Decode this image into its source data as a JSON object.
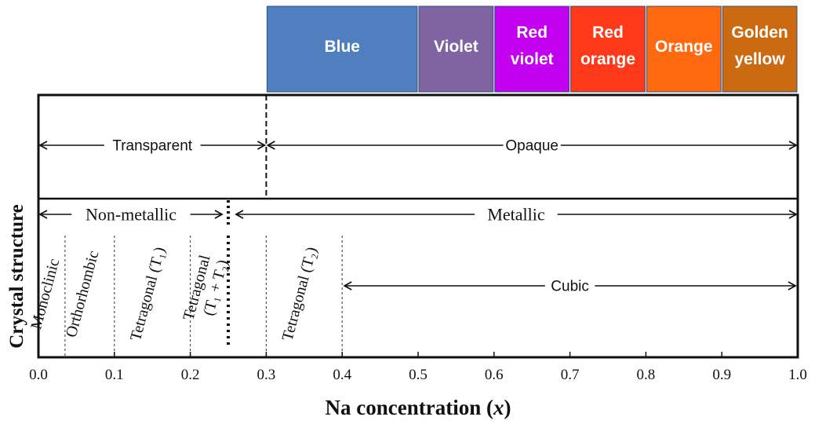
{
  "color_bands": [
    {
      "lines": [
        "Blue"
      ],
      "from": 0.3,
      "to": 0.5,
      "color": "#4f7fbf"
    },
    {
      "lines": [
        "Violet"
      ],
      "from": 0.5,
      "to": 0.6,
      "color": "#8064a2"
    },
    {
      "lines": [
        "Red",
        "violet"
      ],
      "from": 0.6,
      "to": 0.7,
      "color": "#c400f0"
    },
    {
      "lines": [
        "Red",
        "orange"
      ],
      "from": 0.7,
      "to": 0.8,
      "color": "#ff3a1a"
    },
    {
      "lines": [
        "Orange"
      ],
      "from": 0.8,
      "to": 0.9,
      "color": "#ff6a10"
    },
    {
      "lines": [
        "Golden",
        "yellow"
      ],
      "from": 0.9,
      "to": 1.0,
      "color": "#cc6a12"
    }
  ],
  "optical": {
    "boundary": 0.3,
    "left_label": "Transparent",
    "right_label": "Opaque"
  },
  "electrical": {
    "boundary": 0.25,
    "left_label": "Non-metallic",
    "right_label": "Metallic"
  },
  "phases": [
    {
      "name": "monoclinic",
      "label": "Monoclinic",
      "center": 0.015,
      "boundary": 0.035
    },
    {
      "name": "orthorhombic",
      "label": "Orthorhombic",
      "center": 0.064,
      "boundary": 0.1
    },
    {
      "name": "tetragonal-t1",
      "label": "Tetragonal (T₁)",
      "center": 0.15,
      "boundary": 0.2
    },
    {
      "name": "tetragonal-t1-t2",
      "label": "Tetragonal",
      "label2": "(T₁ + T₂)",
      "center": 0.225,
      "boundary": 0.3
    },
    {
      "name": "tetragonal-t2",
      "label": "Tetragonal (T₂)",
      "center": 0.35,
      "boundary": 0.4
    }
  ],
  "cubic": {
    "label": "Cubic",
    "from": 0.4,
    "to": 1.0
  },
  "y_axis_label": "Crystal structure",
  "x_axis": {
    "label": "Na concentration (x)",
    "ticks": [
      "0.0",
      "0.1",
      "0.2",
      "0.3",
      "0.4",
      "0.5",
      "0.6",
      "0.7",
      "0.8",
      "0.9",
      "1.0"
    ],
    "range": [
      0.0,
      1.0
    ]
  }
}
